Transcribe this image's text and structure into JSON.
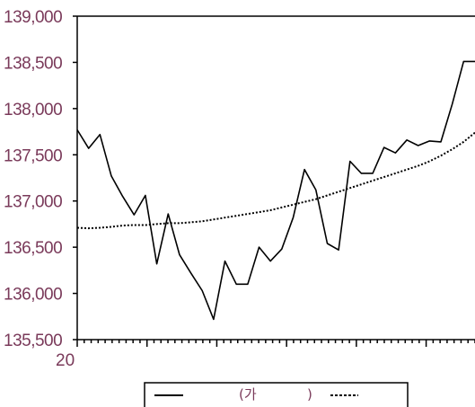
{
  "chart_data": {
    "type": "line",
    "title": "",
    "xlabel": "",
    "ylabel": "",
    "ylim": [
      135500,
      139000
    ],
    "y_ticks": [
      {
        "value": 139000,
        "label": "139,000"
      },
      {
        "value": 138500,
        "label": "138,500"
      },
      {
        "value": 138000,
        "label": "138,000"
      },
      {
        "value": 137500,
        "label": "137,500"
      },
      {
        "value": 137000,
        "label": "137,000"
      },
      {
        "value": 136500,
        "label": "136,500"
      },
      {
        "value": 136000,
        "label": "136,000"
      },
      {
        "value": 135500,
        "label": "135,500"
      }
    ],
    "x_start_label": "20",
    "x_minor_tick_count": 58,
    "x_major_every": 10,
    "series": [
      {
        "name": "(가",
        "style": "solid",
        "values": [
          137770,
          137570,
          137720,
          137270,
          137050,
          136850,
          137060,
          136320,
          136860,
          136420,
          136220,
          136030,
          135720,
          136350,
          136100,
          136100,
          136500,
          136350,
          136480,
          136820,
          137340,
          137120,
          136540,
          136470,
          137430,
          137300,
          137300,
          137580,
          137520,
          137660,
          137600,
          137650,
          137640,
          138050,
          138510,
          138510
        ]
      },
      {
        "name": ")",
        "style": "dotted",
        "values": [
          136710,
          136705,
          136710,
          136720,
          136735,
          136740,
          136740,
          136750,
          136760,
          136760,
          136770,
          136780,
          136800,
          136820,
          136840,
          136860,
          136880,
          136900,
          136930,
          136960,
          136990,
          137020,
          137060,
          137100,
          137140,
          137180,
          137220,
          137260,
          137300,
          137340,
          137380,
          137430,
          137490,
          137560,
          137640,
          137740
        ]
      }
    ],
    "legend": {
      "position": "bottom-center"
    },
    "colors": {
      "axis": "#000000",
      "labels": "#7a3a5a",
      "line": "#000000"
    }
  }
}
